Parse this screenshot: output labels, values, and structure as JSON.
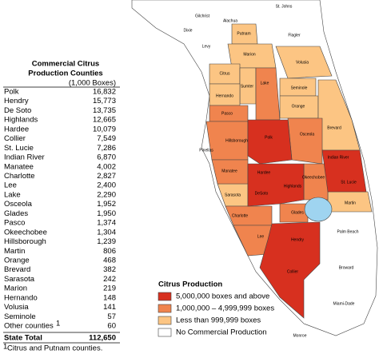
{
  "table": {
    "title": [
      "Commercial Citrus",
      "Production Counties"
    ],
    "unit": "(1,000 Boxes)",
    "rows": [
      [
        "Polk",
        "16,832"
      ],
      [
        "Hendry",
        "15,773"
      ],
      [
        "De Soto",
        "13,735"
      ],
      [
        "Highlands",
        "12,665"
      ],
      [
        "Hardee",
        "10,079"
      ],
      [
        "Collier",
        "7,549"
      ],
      [
        "St. Lucie",
        "7,286"
      ],
      [
        "Indian River",
        "6,870"
      ],
      [
        "Manatee",
        "4,002"
      ],
      [
        "Charlotte",
        "2,827"
      ],
      [
        "Lee",
        "2,400"
      ],
      [
        "Lake",
        "2,290"
      ],
      [
        "Osceola",
        "1,952"
      ],
      [
        "Glades",
        "1,950"
      ],
      [
        "Pasco",
        "1,374"
      ],
      [
        "Okeechobee",
        "1,304"
      ],
      [
        "Hillsborough",
        "1,239"
      ],
      [
        "Martin",
        "806"
      ],
      [
        "Orange",
        "468"
      ],
      [
        "Brevard",
        "382"
      ],
      [
        "Sarasota",
        "242"
      ],
      [
        "Marion",
        "219"
      ],
      [
        "Hernando",
        "148"
      ],
      [
        "Volusia",
        "141"
      ],
      [
        "Seminole",
        "57"
      ],
      [
        "Other counties",
        "60"
      ]
    ],
    "note_marker": "1",
    "total": [
      "State Total",
      "112,650"
    ],
    "footnote_marker": "1",
    "footnote": "Citrus and Putnam counties."
  },
  "legend": {
    "title": "Citrus Production",
    "items": [
      {
        "label": "5,000,000 boxes and above",
        "color": "#d7301f"
      },
      {
        "label": "1,000,000 – 4,999,999 boxes",
        "color": "#f0844e"
      },
      {
        "label": "Less than 999,999 boxes",
        "color": "#fcc583"
      },
      {
        "label": "No Commercial Production",
        "color": "#ffffff"
      }
    ]
  },
  "map": {
    "labels": [
      "Gilchrist",
      "Alachua",
      "St. Johns",
      "Dixie",
      "Putnam",
      "Flagler",
      "Levy",
      "Marion",
      "Volusia",
      "Citrus",
      "Sumter",
      "Lake",
      "Seminole",
      "Hernando",
      "Orange",
      "Pasco",
      "Brevard",
      "Hillsborough",
      "Polk",
      "Osceola",
      "Pinellas",
      "Indian River",
      "Manatee",
      "Hardee",
      "Okeechobee",
      "St. Lucie",
      "Sarasota",
      "DeSoto",
      "Highlands",
      "Martin",
      "Charlotte",
      "Glades",
      "Palm Beach",
      "Lee",
      "Hendry",
      "Broward",
      "Collier",
      "Miami-Dade",
      "Monroe"
    ]
  }
}
